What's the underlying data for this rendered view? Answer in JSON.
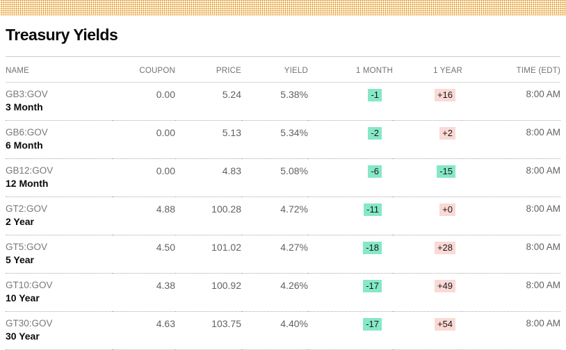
{
  "title": "Treasury Yields",
  "table": {
    "columns": [
      {
        "label": "NAME"
      },
      {
        "label": "COUPON"
      },
      {
        "label": "PRICE"
      },
      {
        "label": "YIELD"
      },
      {
        "label": "1 MONTH"
      },
      {
        "label": "1 YEAR"
      },
      {
        "label": "TIME (EDT)"
      }
    ],
    "rows": [
      {
        "ticker": "GB3:GOV",
        "maturity": "3 Month",
        "coupon": "0.00",
        "price": "5.24",
        "yield": "5.38%",
        "one_month": "-1",
        "one_year": "+16",
        "time": "8:00 AM"
      },
      {
        "ticker": "GB6:GOV",
        "maturity": "6 Month",
        "coupon": "0.00",
        "price": "5.13",
        "yield": "5.34%",
        "one_month": "-2",
        "one_year": "+2",
        "time": "8:00 AM"
      },
      {
        "ticker": "GB12:GOV",
        "maturity": "12 Month",
        "coupon": "0.00",
        "price": "4.83",
        "yield": "5.08%",
        "one_month": "-6",
        "one_year": "-15",
        "time": "8:00 AM"
      },
      {
        "ticker": "GT2:GOV",
        "maturity": "2 Year",
        "coupon": "4.88",
        "price": "100.28",
        "yield": "4.72%",
        "one_month": "-11",
        "one_year": "+0",
        "time": "8:00 AM"
      },
      {
        "ticker": "GT5:GOV",
        "maturity": "5 Year",
        "coupon": "4.50",
        "price": "101.02",
        "yield": "4.27%",
        "one_month": "-18",
        "one_year": "+28",
        "time": "8:00 AM"
      },
      {
        "ticker": "GT10:GOV",
        "maturity": "10 Year",
        "coupon": "4.38",
        "price": "100.92",
        "yield": "4.26%",
        "one_month": "-17",
        "one_year": "+49",
        "time": "8:00 AM"
      },
      {
        "ticker": "GT30:GOV",
        "maturity": "30 Year",
        "coupon": "4.63",
        "price": "103.75",
        "yield": "4.40%",
        "one_month": "-17",
        "one_year": "+54",
        "time": "8:00 AM"
      }
    ]
  },
  "colors": {
    "accent_orange": "#e28800",
    "negative_change_bg": "#86e8c6",
    "positive_change_bg": "#fbd9d4"
  }
}
